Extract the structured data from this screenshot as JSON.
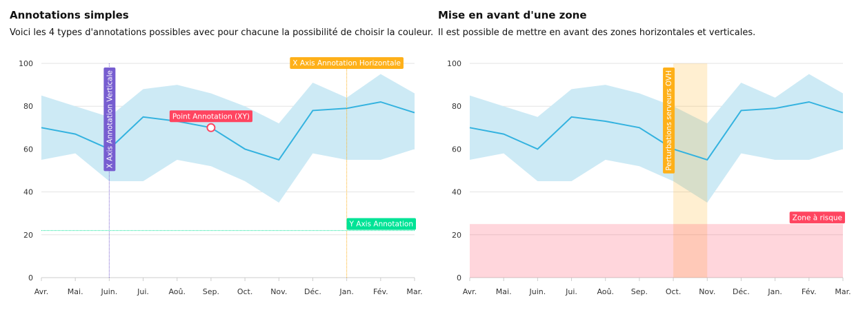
{
  "chart_data": [
    {
      "type": "line",
      "title": "Annotations simples",
      "subtitle": "Voici les 4 types d'annotations possibles avec pour chacune la possibilité de choisir la couleur.",
      "categories": [
        "Avr.",
        "Mai.",
        "Juin.",
        "Jui.",
        "Aoû.",
        "Sep.",
        "Oct.",
        "Nov.",
        "Déc.",
        "Jan.",
        "Fév.",
        "Mar."
      ],
      "series": [
        {
          "type": "range",
          "color": "#cdeaf5",
          "low": [
            55,
            58,
            45,
            45,
            55,
            52,
            45,
            35,
            58,
            55,
            55,
            60
          ],
          "high": [
            85,
            80,
            75,
            88,
            90,
            86,
            80,
            72,
            91,
            84,
            95,
            86
          ]
        },
        {
          "type": "line",
          "color": "#33b2df",
          "values": [
            70,
            67,
            60,
            75,
            73,
            70,
            60,
            55,
            78,
            79,
            82,
            77
          ]
        }
      ],
      "ylim": [
        0,
        100
      ],
      "yticks": [
        0,
        20,
        40,
        60,
        80,
        100
      ],
      "grid": true,
      "annotations": [
        {
          "type": "xline",
          "x": "Juin.",
          "label": "X Axis Annotation Verticale",
          "color": "#775dd0",
          "label_orientation": "vertical"
        },
        {
          "type": "xline",
          "x": "Jan.",
          "label": "X Axis Annotation Horizontale",
          "color": "#feb019",
          "label_orientation": "horizontal"
        },
        {
          "type": "yline",
          "y": 22,
          "label": "Y Axis Annotation",
          "color": "#00e396"
        },
        {
          "type": "point",
          "x": "Sep.",
          "y": 70,
          "label": "Point Annotation (XY)",
          "color": "#ff4560"
        }
      ]
    },
    {
      "type": "line",
      "title": "Mise en avant d'une zone",
      "subtitle": "Il est possible de mettre en avant des zones horizontales et verticales.",
      "categories": [
        "Avr.",
        "Mai.",
        "Juin.",
        "Jui.",
        "Aoû.",
        "Sep.",
        "Oct.",
        "Nov.",
        "Déc.",
        "Jan.",
        "Fév.",
        "Mar."
      ],
      "series": [
        {
          "type": "range",
          "color": "#cdeaf5",
          "low": [
            55,
            58,
            45,
            45,
            55,
            52,
            45,
            35,
            58,
            55,
            55,
            60
          ],
          "high": [
            85,
            80,
            75,
            88,
            90,
            86,
            80,
            72,
            91,
            84,
            95,
            86
          ]
        },
        {
          "type": "line",
          "color": "#33b2df",
          "values": [
            70,
            67,
            60,
            75,
            73,
            70,
            60,
            55,
            78,
            79,
            82,
            77
          ]
        }
      ],
      "ylim": [
        0,
        100
      ],
      "yticks": [
        0,
        20,
        40,
        60,
        80,
        100
      ],
      "grid": true,
      "annotations": [
        {
          "type": "xrange",
          "x": "Oct.",
          "x2": "Nov.",
          "label": "Perturbations serveurs OVH",
          "color": "#feb019",
          "label_orientation": "vertical"
        },
        {
          "type": "yrange",
          "y": 0,
          "y2": 25,
          "label": "Zone à risque",
          "color": "#ff4560"
        }
      ]
    }
  ]
}
